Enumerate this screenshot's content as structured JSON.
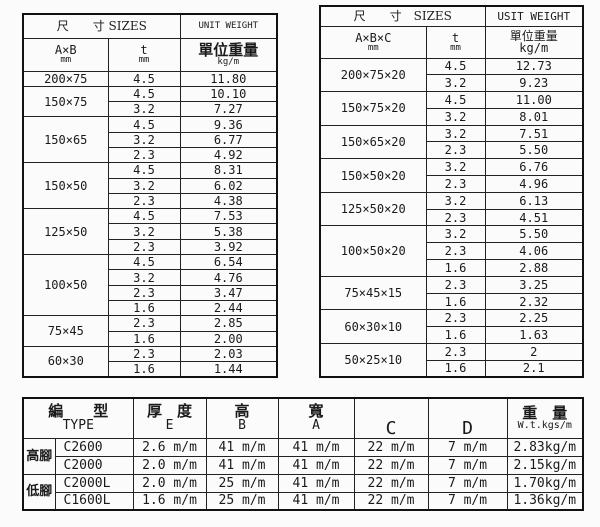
{
  "left_table": {
    "header": {
      "sizes": "尺　　寸 SIZES",
      "unit_weight": "UNIT WEIGHT",
      "unit_weight_cn": "單位重量",
      "dim": "A×B",
      "dim_unit": "mm",
      "t": "t",
      "t_unit": "mm",
      "weight_unit": "kg/m"
    },
    "groups": [
      {
        "size": "200×75",
        "rows": [
          [
            "4.5",
            "11.80"
          ]
        ]
      },
      {
        "size": "150×75",
        "rows": [
          [
            "4.5",
            "10.10"
          ],
          [
            "3.2",
            "7.27"
          ]
        ]
      },
      {
        "size": "150×65",
        "rows": [
          [
            "4.5",
            "9.36"
          ],
          [
            "3.2",
            "6.77"
          ],
          [
            "2.3",
            "4.92"
          ]
        ]
      },
      {
        "size": "150×50",
        "rows": [
          [
            "4.5",
            "8.31"
          ],
          [
            "3.2",
            "6.02"
          ],
          [
            "2.3",
            "4.38"
          ]
        ]
      },
      {
        "size": "125×50",
        "rows": [
          [
            "4.5",
            "7.53"
          ],
          [
            "3.2",
            "5.38"
          ],
          [
            "2.3",
            "3.92"
          ]
        ]
      },
      {
        "size": "100×50",
        "rows": [
          [
            "4.5",
            "6.54"
          ],
          [
            "3.2",
            "4.76"
          ],
          [
            "2.3",
            "3.47"
          ],
          [
            "1.6",
            "2.44"
          ]
        ]
      },
      {
        "size": "75×45",
        "rows": [
          [
            "2.3",
            "2.85"
          ],
          [
            "1.6",
            "2.00"
          ]
        ]
      },
      {
        "size": "60×30",
        "rows": [
          [
            "2.3",
            "2.03"
          ],
          [
            "1.6",
            "1.44"
          ]
        ]
      }
    ]
  },
  "right_table": {
    "header": {
      "sizes": "尺　　寸　SIZES",
      "unit_weight": "USIT WEIGHT",
      "unit_weight_cn": "單位重量",
      "dim": "A×B×C",
      "dim_unit": "mm",
      "t": "t",
      "t_unit": "mm",
      "weight_unit": "kg/m"
    },
    "groups": [
      {
        "size": "200×75×20",
        "rows": [
          [
            "4.5",
            "12.73"
          ],
          [
            "3.2",
            "9.23"
          ]
        ]
      },
      {
        "size": "150×75×20",
        "rows": [
          [
            "4.5",
            "11.00"
          ],
          [
            "3.2",
            "8.01"
          ]
        ]
      },
      {
        "size": "150×65×20",
        "rows": [
          [
            "3.2",
            "7.51"
          ],
          [
            "2.3",
            "5.50"
          ]
        ]
      },
      {
        "size": "150×50×20",
        "rows": [
          [
            "3.2",
            "6.76"
          ],
          [
            "2.3",
            "4.96"
          ]
        ]
      },
      {
        "size": "125×50×20",
        "rows": [
          [
            "3.2",
            "6.13"
          ],
          [
            "2.3",
            "4.51"
          ]
        ]
      },
      {
        "size": "100×50×20",
        "rows": [
          [
            "3.2",
            "5.50"
          ],
          [
            "2.3",
            "4.06"
          ],
          [
            "1.6",
            "2.88"
          ]
        ]
      },
      {
        "size": "75×45×15",
        "rows": [
          [
            "2.3",
            "3.25"
          ],
          [
            "1.6",
            "2.32"
          ]
        ]
      },
      {
        "size": "60×30×10",
        "rows": [
          [
            "2.3",
            "2.25"
          ],
          [
            "1.6",
            "1.63"
          ]
        ]
      },
      {
        "size": "50×25×10",
        "rows": [
          [
            "2.3",
            "2"
          ],
          [
            "1.6",
            "2.1"
          ]
        ]
      }
    ]
  },
  "bottom_table": {
    "header": {
      "type_cn": "編　　型",
      "type": "TYPE",
      "e_cn": "厚　度",
      "e": "E",
      "b_cn": "高",
      "b": "B",
      "a_cn": "寬",
      "a": "A",
      "c": "C",
      "d": "D",
      "wt_cn": "重　量",
      "wt": "W.t.kgs/m"
    },
    "groups": [
      {
        "label": "高腳",
        "rows": [
          [
            "C2600",
            "2.6 m/m",
            "41 m/m",
            "41 m/m",
            "22 m/m",
            "7 m/m",
            "2.83kg/m"
          ],
          [
            "C2000",
            "2.0 m/m",
            "41 m/m",
            "41 m/m",
            "22 m/m",
            "7 m/m",
            "2.15kg/m"
          ]
        ]
      },
      {
        "label": "低腳",
        "rows": [
          [
            "C2000L",
            "2.0 m/m",
            "25 m/m",
            "41 m/m",
            "22 m/m",
            "7 m/m",
            "1.70kg/m"
          ],
          [
            "C1600L",
            "1.6 m/m",
            "25 m/m",
            "41 m/m",
            "22 m/m",
            "7 m/m",
            "1.36kg/m"
          ]
        ]
      }
    ]
  }
}
